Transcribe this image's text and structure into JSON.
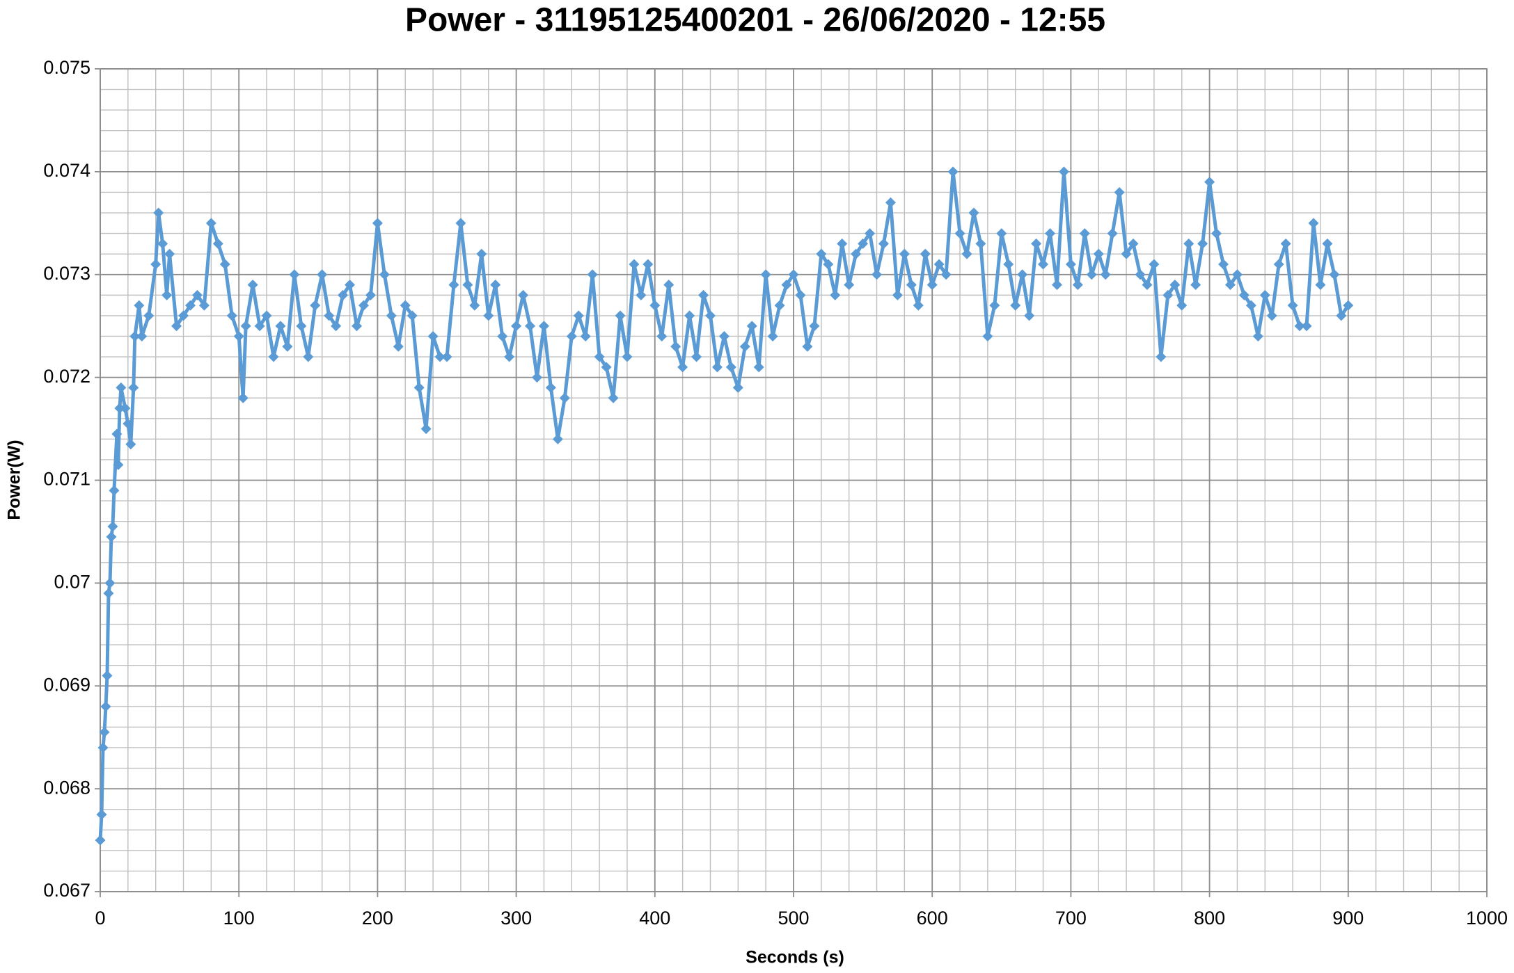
{
  "chart_data": {
    "type": "line",
    "title": "Power - 31195125400201 - 26/06/2020 - 12:55",
    "xlabel": "Seconds (s)",
    "ylabel": "Power(W)",
    "x": [
      0,
      1,
      2,
      3,
      4,
      5,
      6,
      7,
      8,
      9,
      10,
      12,
      13,
      14,
      15,
      18,
      20,
      22,
      24,
      25,
      28,
      30,
      35,
      40,
      42,
      45,
      48,
      50,
      55,
      60,
      65,
      70,
      75,
      80,
      85,
      90,
      95,
      100,
      103,
      105,
      110,
      115,
      120,
      125,
      130,
      135,
      140,
      145,
      150,
      155,
      160,
      165,
      170,
      175,
      180,
      185,
      190,
      195,
      200,
      205,
      210,
      215,
      220,
      225,
      230,
      235,
      240,
      245,
      250,
      255,
      260,
      265,
      270,
      275,
      280,
      285,
      290,
      295,
      300,
      305,
      310,
      315,
      320,
      325,
      330,
      335,
      340,
      345,
      350,
      355,
      360,
      365,
      370,
      375,
      380,
      385,
      390,
      395,
      400,
      405,
      410,
      415,
      420,
      425,
      430,
      435,
      440,
      445,
      450,
      455,
      460,
      465,
      470,
      475,
      480,
      485,
      490,
      495,
      500,
      505,
      510,
      515,
      520,
      525,
      530,
      535,
      540,
      545,
      550,
      555,
      560,
      565,
      570,
      575,
      580,
      585,
      590,
      595,
      600,
      605,
      610,
      615,
      620,
      625,
      630,
      635,
      640,
      645,
      650,
      655,
      660,
      665,
      670,
      675,
      680,
      685,
      690,
      695,
      700,
      705,
      710,
      715,
      720,
      725,
      730,
      735,
      740,
      745,
      750,
      755,
      760,
      765,
      770,
      775,
      780,
      785,
      790,
      795,
      800,
      805,
      810,
      815,
      820,
      825,
      830,
      835,
      840,
      845,
      850,
      855,
      860,
      865,
      870,
      875,
      880,
      885,
      890,
      895,
      900
    ],
    "series": [
      {
        "name": "Power",
        "color": "#5b9bd5",
        "values": [
          0.0675,
          0.06775,
          0.0684,
          0.06855,
          0.0688,
          0.0691,
          0.0699,
          0.07,
          0.07045,
          0.07055,
          0.0709,
          0.07145,
          0.07115,
          0.0717,
          0.0719,
          0.0717,
          0.07155,
          0.07135,
          0.0719,
          0.0724,
          0.0727,
          0.0724,
          0.0726,
          0.0731,
          0.0736,
          0.0733,
          0.0728,
          0.0732,
          0.0725,
          0.0726,
          0.0727,
          0.0728,
          0.0727,
          0.0735,
          0.0733,
          0.0731,
          0.0726,
          0.0724,
          0.0718,
          0.0725,
          0.0729,
          0.0725,
          0.0726,
          0.0722,
          0.0725,
          0.0723,
          0.073,
          0.0725,
          0.0722,
          0.0727,
          0.073,
          0.0726,
          0.0725,
          0.0728,
          0.0729,
          0.0725,
          0.0727,
          0.0728,
          0.0735,
          0.073,
          0.0726,
          0.0723,
          0.0727,
          0.0726,
          0.0719,
          0.0715,
          0.0724,
          0.0722,
          0.0722,
          0.0729,
          0.0735,
          0.0729,
          0.0727,
          0.0732,
          0.0726,
          0.0729,
          0.0724,
          0.0722,
          0.0725,
          0.0728,
          0.0725,
          0.072,
          0.0725,
          0.0719,
          0.0714,
          0.0718,
          0.0724,
          0.0726,
          0.0724,
          0.073,
          0.0722,
          0.0721,
          0.0718,
          0.0726,
          0.0722,
          0.0731,
          0.0728,
          0.0731,
          0.0727,
          0.0724,
          0.0729,
          0.0723,
          0.0721,
          0.0726,
          0.0722,
          0.0728,
          0.0726,
          0.0721,
          0.0724,
          0.0721,
          0.0719,
          0.0723,
          0.0725,
          0.0721,
          0.073,
          0.0724,
          0.0727,
          0.0729,
          0.073,
          0.0728,
          0.0723,
          0.0725,
          0.0732,
          0.0731,
          0.0728,
          0.0733,
          0.0729,
          0.0732,
          0.0733,
          0.0734,
          0.073,
          0.0733,
          0.0737,
          0.0728,
          0.0732,
          0.0729,
          0.0727,
          0.0732,
          0.0729,
          0.0731,
          0.073,
          0.074,
          0.0734,
          0.0732,
          0.0736,
          0.0733,
          0.0724,
          0.0727,
          0.0734,
          0.0731,
          0.0727,
          0.073,
          0.0726,
          0.0733,
          0.0731,
          0.0734,
          0.0729,
          0.074,
          0.0731,
          0.0729,
          0.0734,
          0.073,
          0.0732,
          0.073,
          0.0734,
          0.0738,
          0.0732,
          0.0733,
          0.073,
          0.0729,
          0.0731,
          0.0722,
          0.0728,
          0.0729,
          0.0727,
          0.0733,
          0.0729,
          0.0733,
          0.0739,
          0.0734,
          0.0731,
          0.0729,
          0.073,
          0.0728,
          0.0727,
          0.0724,
          0.0728,
          0.0726,
          0.0731,
          0.0733,
          0.0727,
          0.0725,
          0.0725,
          0.0735,
          0.0729,
          0.0733,
          0.073,
          0.0726,
          0.0727
        ]
      }
    ],
    "xlim": [
      0,
      1000
    ],
    "xticks": [
      0,
      100,
      200,
      300,
      400,
      500,
      600,
      700,
      800,
      900,
      1000
    ],
    "ylim": [
      0.067,
      0.075
    ],
    "yticks": [
      0.067,
      0.068,
      0.069,
      0.07,
      0.071,
      0.072,
      0.073,
      0.074,
      0.075
    ],
    "grid": true,
    "minor_divisions": 5,
    "markers": "diamond"
  }
}
